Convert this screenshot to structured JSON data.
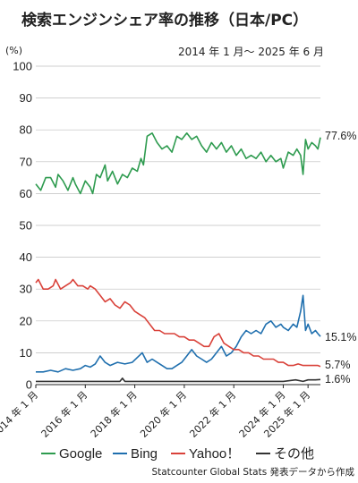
{
  "chart_data": {
    "type": "line",
    "title": "検索エンジンシェア率の推移（日本/PC）",
    "subtitle": "2014 年 1 月〜 2025 年 6 月",
    "ylabel": "(%)",
    "ylim": [
      0,
      100
    ],
    "yticks": [
      0,
      10,
      20,
      30,
      40,
      50,
      60,
      70,
      80,
      90,
      100
    ],
    "xlim": [
      2014.0,
      2025.5
    ],
    "xticks": [
      {
        "x": 2014.0,
        "label": "2014 年 1 月"
      },
      {
        "x": 2016.0,
        "label": "2016 年 1 月"
      },
      {
        "x": 2018.0,
        "label": "2018 年 1 月"
      },
      {
        "x": 2020.0,
        "label": "2020 年 1 月"
      },
      {
        "x": 2022.0,
        "label": "2022 年 1 月"
      },
      {
        "x": 2024.0,
        "label": "2024 年 1 月"
      },
      {
        "x": 2025.0,
        "label": "2025 年 1 月"
      }
    ],
    "grid": true,
    "legend_position": "bottom",
    "source": "Statcounter Global Stats 発表データから作成",
    "series": [
      {
        "name": "Google",
        "color": "#2e9b4f",
        "end_label": "77.6%",
        "points": [
          [
            2014.0,
            63
          ],
          [
            2014.2,
            61
          ],
          [
            2014.4,
            65
          ],
          [
            2014.6,
            65
          ],
          [
            2014.8,
            62
          ],
          [
            2014.9,
            66
          ],
          [
            2015.1,
            64
          ],
          [
            2015.3,
            61
          ],
          [
            2015.5,
            65
          ],
          [
            2015.6,
            63
          ],
          [
            2015.8,
            60
          ],
          [
            2016.0,
            64
          ],
          [
            2016.2,
            62
          ],
          [
            2016.3,
            60
          ],
          [
            2016.45,
            66
          ],
          [
            2016.6,
            65
          ],
          [
            2016.8,
            69
          ],
          [
            2016.9,
            64
          ],
          [
            2017.1,
            67
          ],
          [
            2017.3,
            63
          ],
          [
            2017.5,
            66
          ],
          [
            2017.7,
            65
          ],
          [
            2017.9,
            68
          ],
          [
            2018.1,
            67
          ],
          [
            2018.25,
            71
          ],
          [
            2018.35,
            69
          ],
          [
            2018.5,
            78
          ],
          [
            2018.7,
            79
          ],
          [
            2018.9,
            76
          ],
          [
            2019.1,
            74
          ],
          [
            2019.3,
            75
          ],
          [
            2019.5,
            73
          ],
          [
            2019.7,
            78
          ],
          [
            2019.9,
            77
          ],
          [
            2020.1,
            79
          ],
          [
            2020.3,
            77
          ],
          [
            2020.5,
            78
          ],
          [
            2020.7,
            75
          ],
          [
            2020.9,
            73
          ],
          [
            2021.1,
            76
          ],
          [
            2021.3,
            74
          ],
          [
            2021.5,
            76
          ],
          [
            2021.7,
            73
          ],
          [
            2021.9,
            75
          ],
          [
            2022.1,
            72
          ],
          [
            2022.3,
            74
          ],
          [
            2022.5,
            71
          ],
          [
            2022.7,
            72
          ],
          [
            2022.9,
            71
          ],
          [
            2023.1,
            73
          ],
          [
            2023.3,
            70
          ],
          [
            2023.5,
            72
          ],
          [
            2023.7,
            70
          ],
          [
            2023.9,
            71
          ],
          [
            2024.0,
            68
          ],
          [
            2024.2,
            73
          ],
          [
            2024.4,
            72
          ],
          [
            2024.55,
            74
          ],
          [
            2024.7,
            72
          ],
          [
            2024.8,
            66
          ],
          [
            2024.9,
            77
          ],
          [
            2025.0,
            74
          ],
          [
            2025.15,
            76
          ],
          [
            2025.3,
            75
          ],
          [
            2025.4,
            74
          ],
          [
            2025.5,
            77.6
          ]
        ]
      },
      {
        "name": "Bing",
        "color": "#1f6fae",
        "end_label": "15.1%",
        "points": [
          [
            2014.0,
            4
          ],
          [
            2014.3,
            4
          ],
          [
            2014.6,
            4.5
          ],
          [
            2014.9,
            4
          ],
          [
            2015.2,
            5
          ],
          [
            2015.5,
            4.5
          ],
          [
            2015.8,
            5
          ],
          [
            2016.0,
            6
          ],
          [
            2016.2,
            5.5
          ],
          [
            2016.4,
            6.5
          ],
          [
            2016.6,
            9
          ],
          [
            2016.8,
            7
          ],
          [
            2017.0,
            6
          ],
          [
            2017.3,
            7
          ],
          [
            2017.6,
            6.5
          ],
          [
            2017.9,
            7
          ],
          [
            2018.1,
            8.5
          ],
          [
            2018.3,
            10
          ],
          [
            2018.5,
            7
          ],
          [
            2018.7,
            8
          ],
          [
            2018.9,
            7
          ],
          [
            2019.1,
            6
          ],
          [
            2019.3,
            5
          ],
          [
            2019.5,
            5
          ],
          [
            2019.7,
            6
          ],
          [
            2019.9,
            7
          ],
          [
            2020.1,
            9
          ],
          [
            2020.3,
            11
          ],
          [
            2020.5,
            9
          ],
          [
            2020.7,
            8
          ],
          [
            2020.9,
            7
          ],
          [
            2021.1,
            8
          ],
          [
            2021.3,
            10
          ],
          [
            2021.5,
            12
          ],
          [
            2021.7,
            9
          ],
          [
            2021.9,
            10
          ],
          [
            2022.1,
            12
          ],
          [
            2022.3,
            15
          ],
          [
            2022.5,
            17
          ],
          [
            2022.7,
            16
          ],
          [
            2022.9,
            17
          ],
          [
            2023.1,
            16
          ],
          [
            2023.3,
            19
          ],
          [
            2023.5,
            20
          ],
          [
            2023.7,
            18
          ],
          [
            2023.9,
            19
          ],
          [
            2024.0,
            18
          ],
          [
            2024.2,
            17
          ],
          [
            2024.4,
            19
          ],
          [
            2024.55,
            18
          ],
          [
            2024.7,
            23
          ],
          [
            2024.8,
            28
          ],
          [
            2024.9,
            17
          ],
          [
            2025.0,
            19
          ],
          [
            2025.15,
            16
          ],
          [
            2025.3,
            17
          ],
          [
            2025.4,
            16
          ],
          [
            2025.5,
            15.1
          ]
        ]
      },
      {
        "name": "Yahoo！",
        "color": "#d9423a",
        "end_label": "5.7%",
        "points": [
          [
            2014.0,
            32
          ],
          [
            2014.1,
            33
          ],
          [
            2014.3,
            30
          ],
          [
            2014.5,
            30
          ],
          [
            2014.7,
            31
          ],
          [
            2014.8,
            33
          ],
          [
            2015.0,
            30
          ],
          [
            2015.2,
            31
          ],
          [
            2015.4,
            32
          ],
          [
            2015.5,
            33
          ],
          [
            2015.7,
            31
          ],
          [
            2015.9,
            31
          ],
          [
            2016.1,
            30
          ],
          [
            2016.2,
            31
          ],
          [
            2016.4,
            30
          ],
          [
            2016.6,
            28
          ],
          [
            2016.8,
            26
          ],
          [
            2017.0,
            27
          ],
          [
            2017.2,
            25
          ],
          [
            2017.4,
            24
          ],
          [
            2017.6,
            26
          ],
          [
            2017.8,
            25
          ],
          [
            2018.0,
            23
          ],
          [
            2018.2,
            22
          ],
          [
            2018.4,
            21
          ],
          [
            2018.6,
            19
          ],
          [
            2018.8,
            17
          ],
          [
            2019.0,
            17
          ],
          [
            2019.2,
            16
          ],
          [
            2019.4,
            16
          ],
          [
            2019.6,
            16
          ],
          [
            2019.8,
            15
          ],
          [
            2020.0,
            15
          ],
          [
            2020.2,
            14
          ],
          [
            2020.4,
            14
          ],
          [
            2020.6,
            13
          ],
          [
            2020.8,
            12
          ],
          [
            2021.0,
            12
          ],
          [
            2021.2,
            15
          ],
          [
            2021.4,
            16
          ],
          [
            2021.6,
            13
          ],
          [
            2021.8,
            12
          ],
          [
            2022.0,
            11
          ],
          [
            2022.2,
            11
          ],
          [
            2022.4,
            10
          ],
          [
            2022.6,
            10
          ],
          [
            2022.8,
            9
          ],
          [
            2023.0,
            9
          ],
          [
            2023.2,
            8
          ],
          [
            2023.4,
            8
          ],
          [
            2023.6,
            8
          ],
          [
            2023.8,
            7
          ],
          [
            2024.0,
            7
          ],
          [
            2024.2,
            6
          ],
          [
            2024.4,
            6
          ],
          [
            2024.6,
            6.5
          ],
          [
            2024.8,
            6
          ],
          [
            2025.0,
            6
          ],
          [
            2025.2,
            6
          ],
          [
            2025.4,
            6
          ],
          [
            2025.5,
            5.7
          ]
        ]
      },
      {
        "name": "その他",
        "color": "#333333",
        "end_label": "1.6%",
        "points": [
          [
            2014.0,
            1
          ],
          [
            2014.5,
            1
          ],
          [
            2015.0,
            1
          ],
          [
            2015.5,
            1
          ],
          [
            2016.0,
            1
          ],
          [
            2016.5,
            1
          ],
          [
            2017.0,
            1
          ],
          [
            2017.4,
            1
          ],
          [
            2017.5,
            2
          ],
          [
            2017.6,
            1
          ],
          [
            2018.0,
            1
          ],
          [
            2018.5,
            1
          ],
          [
            2019.0,
            1
          ],
          [
            2019.5,
            1
          ],
          [
            2020.0,
            1
          ],
          [
            2020.5,
            1
          ],
          [
            2021.0,
            1
          ],
          [
            2021.5,
            1
          ],
          [
            2022.0,
            1
          ],
          [
            2022.5,
            1
          ],
          [
            2023.0,
            1
          ],
          [
            2023.5,
            1
          ],
          [
            2024.0,
            1
          ],
          [
            2024.5,
            1.5
          ],
          [
            2024.8,
            1
          ],
          [
            2025.0,
            1.5
          ],
          [
            2025.3,
            1.5
          ],
          [
            2025.5,
            1.6
          ]
        ]
      }
    ]
  }
}
